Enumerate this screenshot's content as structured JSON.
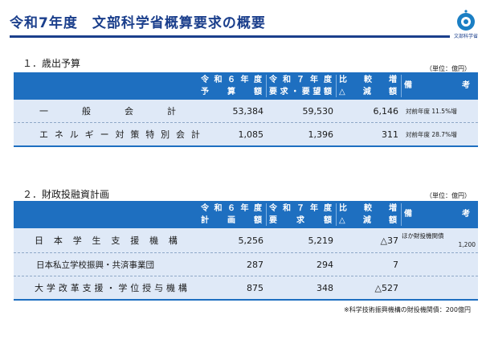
{
  "page": {
    "title": "令和7年度　文部科学省概算要求の概要",
    "logo_text": "文部科学省"
  },
  "colors": {
    "primary": "#1b3f8c",
    "header_bg": "#1e6fc0",
    "row_bg": "#dfe9f7"
  },
  "section1": {
    "title": "１．歳出予算",
    "unit": "（単位：億円）",
    "headers": {
      "col1_line1": "令和６年度",
      "col1_line2": "予算額",
      "col2_line1": "令和７年度",
      "col2_line2": "要求・要望額",
      "col3_line1": "比較増",
      "col3_line2": "△減額",
      "col4": "備考"
    },
    "rows": [
      {
        "name": "一般会計",
        "r6": "53,384",
        "r7": "59,530",
        "diff": "6,146",
        "note": "対前年度 11.5%増"
      },
      {
        "name": "エネルギー対策特別会計",
        "r6": "1,085",
        "r7": "1,396",
        "diff": "311",
        "note": "対前年度 28.7%増"
      }
    ]
  },
  "section2": {
    "title": "２．財政投融資計画",
    "unit": "（単位：億円）",
    "headers": {
      "col1_line1": "令和６年度",
      "col1_line2": "計画額",
      "col2_line1": "令和７年度",
      "col2_line2": "要求額",
      "col3_line1": "比較増",
      "col3_line2": "△減額",
      "col4": "備考"
    },
    "rows": [
      {
        "name": "日本学生支援機構",
        "r6": "5,256",
        "r7": "5,219",
        "diff": "△37",
        "note_line1": "ほか財投機関債",
        "note_line2": "1,200"
      },
      {
        "name": "日本私立学校振興・共済事業団",
        "r6": "287",
        "r7": "294",
        "diff": "7",
        "note_line1": "",
        "note_line2": ""
      },
      {
        "name": "大学改革支援・学位授与機構",
        "r6": "875",
        "r7": "348",
        "diff": "△527",
        "note_line1": "",
        "note_line2": ""
      }
    ],
    "footnote": "※科学技術振興機構の財投機関債：200億円"
  }
}
